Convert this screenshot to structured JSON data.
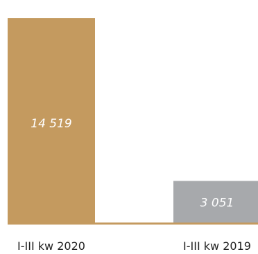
{
  "chart_data": {
    "type": "bar",
    "categories": [
      "I-III kw 2020",
      "I-III kw 2019"
    ],
    "values": [
      14519,
      3051
    ],
    "value_labels": [
      "14 519",
      "3 051"
    ],
    "ylim": [
      0,
      15400
    ],
    "grid": false,
    "colors": [
      "#c49a5f",
      "#a7a9ac"
    ],
    "baseline_color": "#c49a5f"
  }
}
